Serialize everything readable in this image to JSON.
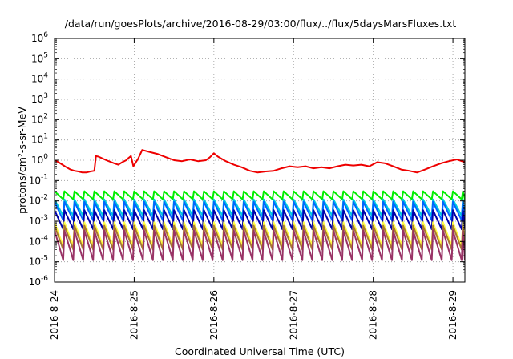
{
  "chart_data": {
    "type": "line",
    "title": "/data/run/goesPlots/archive/2016-08-29/03:00/flux/../flux/5daysMarsFluxes.txt",
    "xlabel": "Coordinated Universal Time (UTC)",
    "ylabel": "protons/cm²-s-sr-MeV",
    "yscale": "log",
    "ylim": [
      1e-06,
      1000000.0
    ],
    "xlim": [
      0,
      5.15
    ],
    "grid": true,
    "legend": "none",
    "x_ticks": [
      {
        "x": 0,
        "label": "2016-8-24"
      },
      {
        "x": 1,
        "label": "2016-8-25"
      },
      {
        "x": 2,
        "label": "2016-8-26"
      },
      {
        "x": 3,
        "label": "2016-8-27"
      },
      {
        "x": 4,
        "label": "2016-8-28"
      },
      {
        "x": 5,
        "label": "2016-8-29"
      }
    ],
    "y_ticks": [
      {
        "exp": 6,
        "label_base": "10",
        "label_exp": "6"
      },
      {
        "exp": 5,
        "label_base": "10",
        "label_exp": "5"
      },
      {
        "exp": 4,
        "label_base": "10",
        "label_exp": "4"
      },
      {
        "exp": 3,
        "label_base": "10",
        "label_exp": "3"
      },
      {
        "exp": 2,
        "label_base": "10",
        "label_exp": "2"
      },
      {
        "exp": 1,
        "label_base": "10",
        "label_exp": "1"
      },
      {
        "exp": 0,
        "label_base": "10",
        "label_exp": "0"
      },
      {
        "exp": -1,
        "label_base": "10",
        "label_exp": "-1"
      },
      {
        "exp": -2,
        "label_base": "10",
        "label_exp": "-2"
      },
      {
        "exp": -3,
        "label_base": "10",
        "label_exp": "-3"
      },
      {
        "exp": -4,
        "label_base": "10",
        "label_exp": "-4"
      },
      {
        "exp": -5,
        "label_base": "10",
        "label_exp": "-5"
      },
      {
        "exp": -6,
        "label_base": "10",
        "label_exp": "-6"
      }
    ],
    "series": [
      {
        "color": "#ee0000",
        "kind": "points",
        "x": [
          0,
          0.05,
          0.1,
          0.15,
          0.2,
          0.25,
          0.3,
          0.35,
          0.4,
          0.45,
          0.5,
          0.52,
          0.55,
          0.65,
          0.75,
          0.8,
          0.85,
          0.9,
          0.93,
          0.96,
          0.99,
          1.05,
          1.1,
          1.2,
          1.3,
          1.4,
          1.5,
          1.6,
          1.7,
          1.8,
          1.9,
          1.95,
          2.0,
          2.05,
          2.15,
          2.25,
          2.35,
          2.45,
          2.55,
          2.65,
          2.75,
          2.85,
          2.95,
          3.05,
          3.15,
          3.25,
          3.35,
          3.45,
          3.55,
          3.65,
          3.75,
          3.85,
          3.95,
          4.05,
          4.15,
          4.25,
          4.35,
          4.45,
          4.55,
          4.65,
          4.75,
          4.85,
          4.95,
          5.05,
          5.15
        ],
        "y": [
          1.0,
          0.8,
          0.6,
          0.45,
          0.35,
          0.3,
          0.28,
          0.25,
          0.25,
          0.28,
          0.3,
          1.6,
          1.5,
          1.0,
          0.7,
          0.6,
          0.8,
          1.0,
          1.3,
          1.6,
          0.5,
          1.2,
          3.2,
          2.5,
          2.0,
          1.4,
          1.0,
          0.9,
          1.1,
          0.9,
          1.0,
          1.4,
          2.2,
          1.5,
          0.9,
          0.6,
          0.45,
          0.3,
          0.25,
          0.28,
          0.3,
          0.4,
          0.5,
          0.45,
          0.5,
          0.4,
          0.45,
          0.4,
          0.5,
          0.6,
          0.55,
          0.6,
          0.5,
          0.8,
          0.7,
          0.5,
          0.35,
          0.3,
          0.25,
          0.35,
          0.5,
          0.7,
          0.9,
          1.1,
          0.8
        ]
      },
      {
        "color": "#00ee00",
        "kind": "sawtooth",
        "period": 0.125,
        "peak": 0.03,
        "trough": 0.012
      },
      {
        "color": "#00ccdd",
        "kind": "sawtooth",
        "period": 0.125,
        "peak": 0.012,
        "trough": 0.0018
      },
      {
        "color": "#0066ff",
        "kind": "sawtooth",
        "period": 0.125,
        "peak": 0.009,
        "trough": 0.0011
      },
      {
        "color": "#0000aa",
        "kind": "sawtooth",
        "period": 0.125,
        "peak": 0.0035,
        "trough": 0.0004
      },
      {
        "color": "#ffff44",
        "kind": "sawtooth",
        "period": 0.125,
        "peak": 0.0009,
        "trough": 6e-05
      },
      {
        "color": "#aa7733",
        "kind": "sawtooth",
        "period": 0.125,
        "peak": 0.0006,
        "trough": 4e-05
      },
      {
        "color": "#993366",
        "kind": "sawtooth",
        "period": 0.125,
        "peak": 0.00035,
        "trough": 1.2e-05
      }
    ]
  }
}
